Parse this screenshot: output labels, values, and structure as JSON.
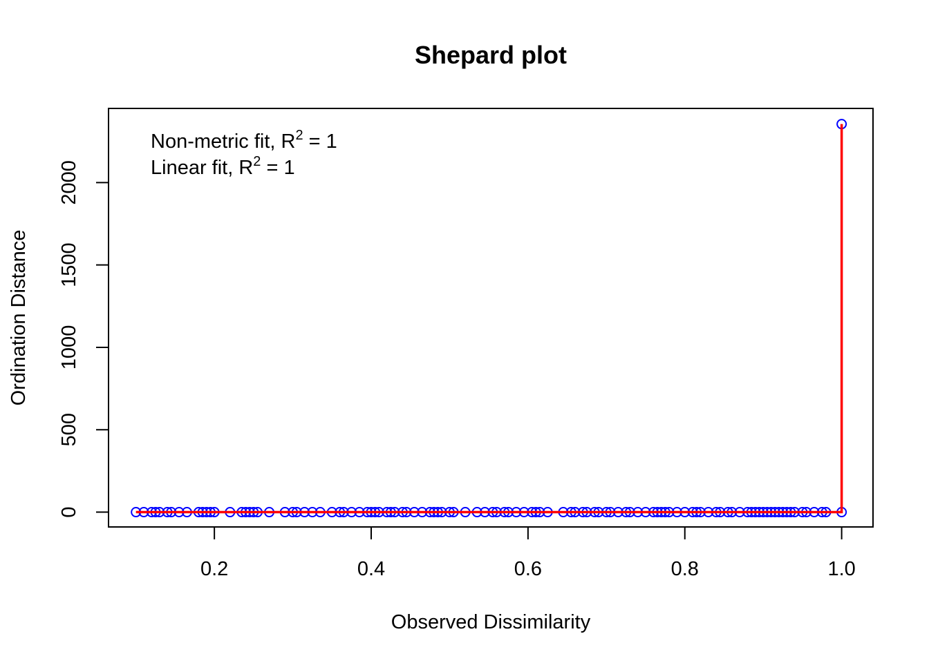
{
  "chart_data": {
    "type": "scatter",
    "title": "Shepard plot",
    "xlabel": "Observed Dissimilarity",
    "ylabel": "Ordination Distance",
    "xlim": [
      0.065,
      1.04
    ],
    "ylim": [
      -90,
      2450
    ],
    "xticks": [
      0.2,
      0.4,
      0.6,
      0.8,
      1.0
    ],
    "xtick_labels": [
      "0.2",
      "0.4",
      "0.6",
      "0.8",
      "1.0"
    ],
    "yticks": [
      0,
      500,
      1000,
      1500,
      2000
    ],
    "ytick_labels": [
      "0",
      "500",
      "1000",
      "1500",
      "2000"
    ],
    "grid": false,
    "legend": {
      "position": "top-left",
      "lines": [
        {
          "prefix": "Non-metric fit, R",
          "sup": "2",
          "suffix": " = 1"
        },
        {
          "prefix": "Linear fit, R",
          "sup": "2",
          "suffix": " = 1"
        }
      ]
    },
    "series": [
      {
        "marker": "circle-open",
        "color": "#0000ff",
        "x": [
          0.1,
          0.11,
          0.12,
          0.125,
          0.13,
          0.14,
          0.145,
          0.155,
          0.165,
          0.18,
          0.185,
          0.19,
          0.195,
          0.2,
          0.22,
          0.235,
          0.24,
          0.245,
          0.25,
          0.255,
          0.27,
          0.29,
          0.3,
          0.305,
          0.315,
          0.325,
          0.335,
          0.35,
          0.36,
          0.365,
          0.375,
          0.385,
          0.395,
          0.4,
          0.405,
          0.41,
          0.42,
          0.425,
          0.43,
          0.44,
          0.445,
          0.455,
          0.465,
          0.475,
          0.48,
          0.485,
          0.49,
          0.5,
          0.505,
          0.52,
          0.535,
          0.545,
          0.555,
          0.56,
          0.57,
          0.575,
          0.585,
          0.595,
          0.605,
          0.61,
          0.615,
          0.625,
          0.645,
          0.655,
          0.66,
          0.67,
          0.675,
          0.685,
          0.69,
          0.7,
          0.705,
          0.715,
          0.725,
          0.73,
          0.74,
          0.75,
          0.76,
          0.765,
          0.77,
          0.775,
          0.78,
          0.79,
          0.8,
          0.81,
          0.815,
          0.82,
          0.83,
          0.84,
          0.845,
          0.855,
          0.86,
          0.87,
          0.88,
          0.885,
          0.89,
          0.895,
          0.9,
          0.905,
          0.91,
          0.915,
          0.92,
          0.925,
          0.93,
          0.935,
          0.94,
          0.95,
          0.955,
          0.965,
          0.975,
          0.98,
          1.0,
          1.0
        ],
        "y": [
          0,
          0,
          0,
          0,
          0,
          0,
          0,
          0,
          0,
          0,
          0,
          0,
          0,
          0,
          0,
          0,
          0,
          0,
          0,
          0,
          0,
          0,
          0,
          0,
          0,
          0,
          0,
          0,
          0,
          0,
          0,
          0,
          0,
          0,
          0,
          0,
          0,
          0,
          0,
          0,
          0,
          0,
          0,
          0,
          0,
          0,
          0,
          0,
          0,
          0,
          0,
          0,
          0,
          0,
          0,
          0,
          0,
          0,
          0,
          0,
          0,
          0,
          0,
          0,
          0,
          0,
          0,
          0,
          0,
          0,
          0,
          0,
          0,
          0,
          0,
          0,
          0,
          0,
          0,
          0,
          0,
          0,
          0,
          0,
          0,
          0,
          0,
          0,
          0,
          0,
          0,
          0,
          0,
          0,
          0,
          0,
          0,
          0,
          0,
          0,
          0,
          0,
          0,
          0,
          0,
          0,
          0,
          0,
          0,
          0,
          0,
          2355
        ]
      },
      {
        "marker": "step-line",
        "color": "#ff0000",
        "x": [
          0.1,
          1.0,
          1.0
        ],
        "y": [
          0,
          0,
          2355
        ]
      }
    ]
  }
}
